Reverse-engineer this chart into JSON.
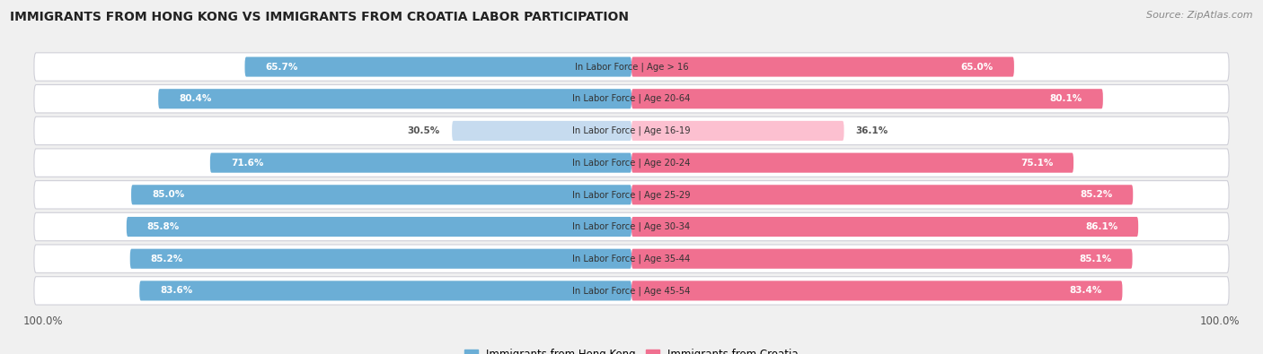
{
  "title": "IMMIGRANTS FROM HONG KONG VS IMMIGRANTS FROM CROATIA LABOR PARTICIPATION",
  "source": "Source: ZipAtlas.com",
  "categories": [
    "In Labor Force | Age > 16",
    "In Labor Force | Age 20-64",
    "In Labor Force | Age 16-19",
    "In Labor Force | Age 20-24",
    "In Labor Force | Age 25-29",
    "In Labor Force | Age 30-34",
    "In Labor Force | Age 35-44",
    "In Labor Force | Age 45-54"
  ],
  "hong_kong_values": [
    65.7,
    80.4,
    30.5,
    71.6,
    85.0,
    85.8,
    85.2,
    83.6
  ],
  "croatia_values": [
    65.0,
    80.1,
    36.1,
    75.1,
    85.2,
    86.1,
    85.1,
    83.4
  ],
  "hong_kong_color": "#6baed6",
  "croatia_color": "#f07090",
  "hong_kong_color_light": "#c6dbef",
  "croatia_color_light": "#fcc0d0",
  "background_color": "#f0f0f0",
  "row_bg_color": "#ffffff",
  "row_outline_color": "#d0d0d8",
  "max_value": 100.0,
  "legend_hk": "Immigrants from Hong Kong",
  "legend_cr": "Immigrants from Croatia",
  "small_threshold": 50
}
